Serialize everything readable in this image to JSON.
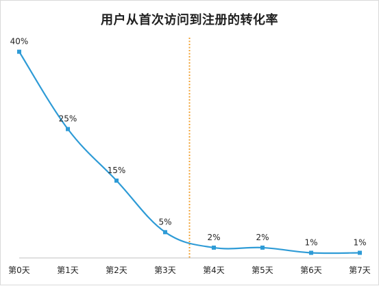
{
  "chart_data": {
    "type": "line",
    "title": "用户从首次访问到注册的转化率",
    "categories": [
      "第0天",
      "第1天",
      "第2天",
      "第3天",
      "第4天",
      "第5天",
      "第6天",
      "第7天"
    ],
    "series": [
      {
        "values": [
          40,
          25,
          15,
          5,
          2,
          2,
          1,
          1
        ],
        "labels": [
          "40%",
          "25%",
          "15%",
          "5%",
          "2%",
          "2%",
          "1%",
          "1%"
        ],
        "color": "#2e9bd6"
      }
    ],
    "ylim": [
      0,
      43
    ],
    "grid": false,
    "legend": "none",
    "annotations": [
      {
        "type": "vertical-dotted-line",
        "x_between": [
          "第3天",
          "第4天"
        ],
        "color": "#f0a030"
      }
    ]
  }
}
